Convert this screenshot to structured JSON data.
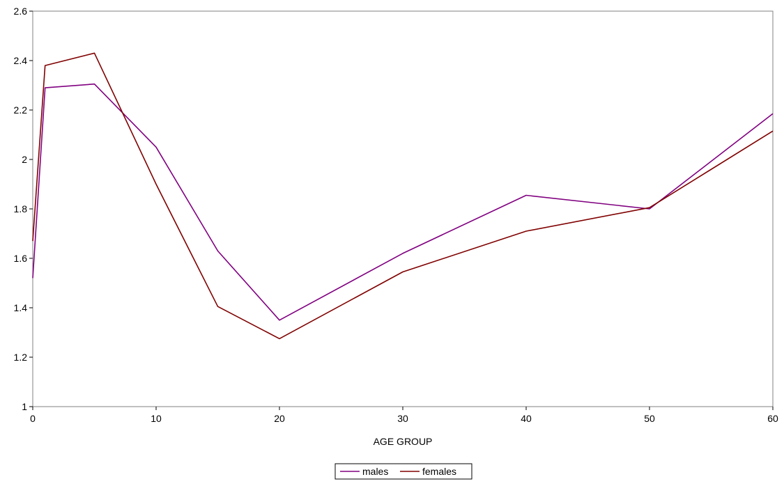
{
  "chart_data": {
    "type": "line",
    "title": "",
    "xlabel": "AGE GROUP",
    "ylabel": "",
    "xlim": [
      0,
      60
    ],
    "ylim": [
      1,
      2.6
    ],
    "xticks": [
      0,
      10,
      20,
      30,
      40,
      50,
      60
    ],
    "yticks": [
      1,
      1.2,
      1.4,
      1.6,
      1.8,
      2,
      2.2,
      2.4,
      2.6
    ],
    "xtick_labels": [
      "0",
      "10",
      "20",
      "30",
      "40",
      "50",
      "60"
    ],
    "ytick_labels": [
      "1",
      "1.2",
      "1.4",
      "1.6",
      "1.8",
      "2",
      "2.2",
      "2.4",
      "2.6"
    ],
    "grid": false,
    "legend_position": "bottom-center",
    "series": [
      {
        "name": "males",
        "color": "#800080",
        "points": [
          [
            0,
            1.52
          ],
          [
            1,
            2.29
          ],
          [
            5,
            2.305
          ],
          [
            10,
            2.05
          ],
          [
            15,
            1.63
          ],
          [
            20,
            1.35
          ],
          [
            30,
            1.62
          ],
          [
            40,
            1.855
          ],
          [
            50,
            1.8
          ],
          [
            60,
            2.185
          ]
        ]
      },
      {
        "name": "females",
        "color": "#800000",
        "points": [
          [
            0,
            1.67
          ],
          [
            1,
            2.38
          ],
          [
            5,
            2.43
          ],
          [
            10,
            1.9
          ],
          [
            15,
            1.405
          ],
          [
            20,
            1.275
          ],
          [
            30,
            1.545
          ],
          [
            40,
            1.71
          ],
          [
            50,
            1.805
          ],
          [
            60,
            2.115
          ]
        ]
      }
    ]
  }
}
